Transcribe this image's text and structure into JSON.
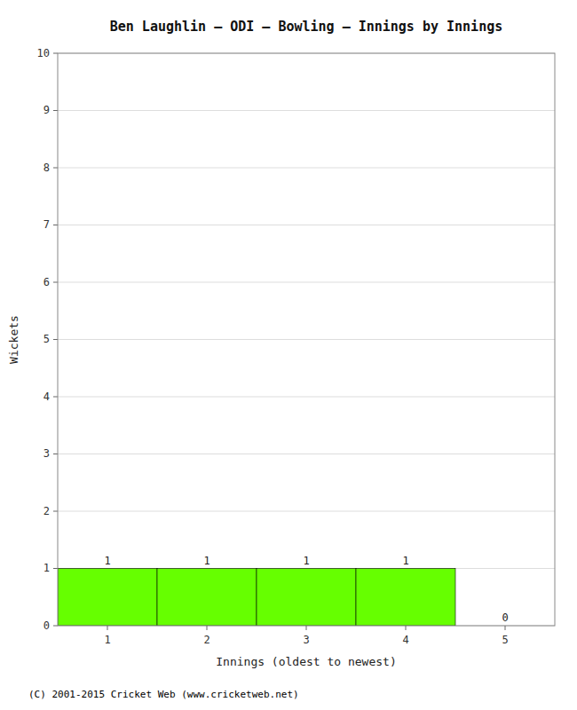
{
  "chart_data": {
    "type": "bar",
    "title": "Ben Laughlin – ODI – Bowling – Innings by Innings",
    "x_label": "Innings (oldest to newest)",
    "y_label": "Wickets",
    "x": [
      1,
      2,
      3,
      4,
      5
    ],
    "values": [
      1,
      1,
      1,
      1,
      0
    ],
    "color": "#66ff00",
    "xlim": [
      0.5,
      5.5
    ],
    "xticks": [
      1,
      2,
      3,
      4,
      5
    ],
    "ylim": [
      0,
      10
    ],
    "yticks": [
      0,
      1,
      2,
      3,
      4,
      5,
      6,
      7,
      8,
      9,
      10
    ],
    "grid": true,
    "data_labels": true,
    "footer": "(C) 2001-2015 Cricket Web (www.cricketweb.net)"
  }
}
